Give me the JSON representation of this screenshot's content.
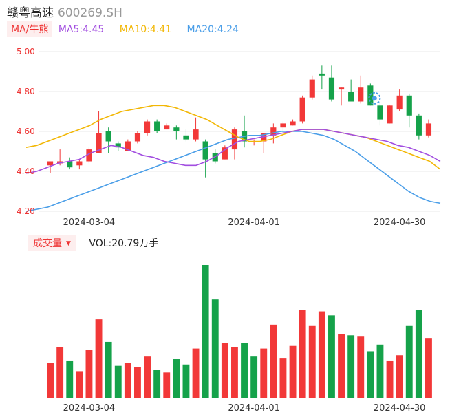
{
  "header": {
    "name": "赣粤高速",
    "code": "600269.SH"
  },
  "ma": {
    "tag": "MA/牛熊",
    "items": [
      {
        "label": "MA5:4.45",
        "color": "#a24ee0"
      },
      {
        "label": "MA10:4.41",
        "color": "#f2b705"
      },
      {
        "label": "MA20:4.24",
        "color": "#4a9ee8"
      }
    ]
  },
  "volume": {
    "tag": "成交量",
    "value": "VOL:20.79万手"
  },
  "colors": {
    "up": "#f23838",
    "down": "#15a24a"
  },
  "chart_data": {
    "type": "candlestick",
    "y_ticks": [
      "5.00",
      "4.80",
      "4.60",
      "4.40",
      "4.20"
    ],
    "ylim": [
      4.2,
      5.0
    ],
    "x_labels": [
      {
        "label": "2024-03-04",
        "index": 4
      },
      {
        "label": "2024-04-01",
        "index": 21
      },
      {
        "label": "2024-04-30",
        "index": 36
      }
    ],
    "candles": [
      {
        "o": 4.43,
        "h": 4.45,
        "l": 4.39,
        "c": 4.45
      },
      {
        "o": 4.44,
        "h": 4.51,
        "l": 4.43,
        "c": 4.45
      },
      {
        "o": 4.45,
        "h": 4.47,
        "l": 4.41,
        "c": 4.42
      },
      {
        "o": 4.43,
        "h": 4.46,
        "l": 4.41,
        "c": 4.45
      },
      {
        "o": 4.45,
        "h": 4.52,
        "l": 4.44,
        "c": 4.51
      },
      {
        "o": 4.49,
        "h": 4.7,
        "l": 4.49,
        "c": 4.59
      },
      {
        "o": 4.6,
        "h": 4.62,
        "l": 4.49,
        "c": 4.55
      },
      {
        "o": 4.54,
        "h": 4.55,
        "l": 4.5,
        "c": 4.52
      },
      {
        "o": 4.5,
        "h": 4.56,
        "l": 4.5,
        "c": 4.55
      },
      {
        "o": 4.55,
        "h": 4.6,
        "l": 4.54,
        "c": 4.59
      },
      {
        "o": 4.59,
        "h": 4.66,
        "l": 4.58,
        "c": 4.65
      },
      {
        "o": 4.65,
        "h": 4.66,
        "l": 4.59,
        "c": 4.6
      },
      {
        "o": 4.61,
        "h": 4.64,
        "l": 4.61,
        "c": 4.63
      },
      {
        "o": 4.62,
        "h": 4.63,
        "l": 4.56,
        "c": 4.6
      },
      {
        "o": 4.58,
        "h": 4.61,
        "l": 4.55,
        "c": 4.56
      },
      {
        "o": 4.56,
        "h": 4.67,
        "l": 4.55,
        "c": 4.61
      },
      {
        "o": 4.55,
        "h": 4.56,
        "l": 4.37,
        "c": 4.46
      },
      {
        "o": 4.49,
        "h": 4.51,
        "l": 4.44,
        "c": 4.45
      },
      {
        "o": 4.46,
        "h": 4.53,
        "l": 4.46,
        "c": 4.52
      },
      {
        "o": 4.51,
        "h": 4.62,
        "l": 4.46,
        "c": 4.61
      },
      {
        "o": 4.6,
        "h": 4.68,
        "l": 4.52,
        "c": 4.55
      },
      {
        "o": 4.55,
        "h": 4.56,
        "l": 4.53,
        "c": 4.55
      },
      {
        "o": 4.55,
        "h": 4.59,
        "l": 4.49,
        "c": 4.59
      },
      {
        "o": 4.58,
        "h": 4.64,
        "l": 4.54,
        "c": 4.62
      },
      {
        "o": 4.62,
        "h": 4.65,
        "l": 4.59,
        "c": 4.64
      },
      {
        "o": 4.63,
        "h": 4.66,
        "l": 4.63,
        "c": 4.65
      },
      {
        "o": 4.65,
        "h": 4.78,
        "l": 4.64,
        "c": 4.77
      },
      {
        "o": 4.77,
        "h": 4.88,
        "l": 4.76,
        "c": 4.86
      },
      {
        "o": 4.89,
        "h": 4.93,
        "l": 4.81,
        "c": 4.88
      },
      {
        "o": 4.87,
        "h": 4.93,
        "l": 4.75,
        "c": 4.76
      },
      {
        "o": 4.81,
        "h": 4.82,
        "l": 4.73,
        "c": 4.82
      },
      {
        "o": 4.8,
        "h": 4.86,
        "l": 4.75,
        "c": 4.75
      },
      {
        "o": 4.75,
        "h": 4.88,
        "l": 4.74,
        "c": 4.82
      },
      {
        "o": 4.83,
        "h": 4.84,
        "l": 4.73,
        "c": 4.73
      },
      {
        "o": 4.73,
        "h": 4.75,
        "l": 4.63,
        "c": 4.66
      },
      {
        "o": 4.64,
        "h": 4.73,
        "l": 4.64,
        "c": 4.73
      },
      {
        "o": 4.71,
        "h": 4.81,
        "l": 4.7,
        "c": 4.78
      },
      {
        "o": 4.78,
        "h": 4.79,
        "l": 4.62,
        "c": 4.68
      },
      {
        "o": 4.68,
        "h": 4.69,
        "l": 4.56,
        "c": 4.58
      },
      {
        "o": 4.58,
        "h": 4.66,
        "l": 4.57,
        "c": 4.64
      }
    ],
    "ma5": [
      4.39,
      4.4,
      4.42,
      4.44,
      4.45,
      4.46,
      4.49,
      4.51,
      4.53,
      4.52,
      4.5,
      4.48,
      4.47,
      4.45,
      4.44,
      4.43,
      4.43,
      4.45,
      4.48,
      4.52,
      4.55,
      4.56,
      4.57,
      4.58,
      4.59,
      4.6,
      4.61,
      4.61,
      4.61,
      4.6,
      4.59,
      4.58,
      4.57,
      4.56,
      4.55,
      4.53,
      4.52,
      4.5,
      4.48,
      4.45
    ],
    "ma10": [
      4.52,
      4.53,
      4.55,
      4.57,
      4.59,
      4.61,
      4.63,
      4.66,
      4.68,
      4.7,
      4.71,
      4.72,
      4.73,
      4.73,
      4.72,
      4.7,
      4.68,
      4.66,
      4.63,
      4.6,
      4.57,
      4.55,
      4.55,
      4.56,
      4.58,
      4.6,
      4.61,
      4.61,
      4.61,
      4.6,
      4.59,
      4.58,
      4.57,
      4.55,
      4.53,
      4.51,
      4.49,
      4.47,
      4.45,
      4.41
    ],
    "ma20": [
      4.2,
      4.21,
      4.22,
      4.24,
      4.26,
      4.28,
      4.3,
      4.32,
      4.34,
      4.36,
      4.38,
      4.4,
      4.42,
      4.44,
      4.46,
      4.48,
      4.5,
      4.52,
      4.54,
      4.56,
      4.57,
      4.58,
      4.58,
      4.59,
      4.6,
      4.6,
      4.6,
      4.59,
      4.58,
      4.56,
      4.53,
      4.5,
      4.46,
      4.42,
      4.38,
      4.34,
      4.3,
      4.27,
      4.25,
      4.24
    ],
    "volume": [
      26,
      38,
      28,
      20,
      36,
      59,
      42,
      24,
      26,
      23,
      31,
      21,
      19,
      29,
      25,
      37,
      100,
      74,
      41,
      38,
      41,
      31,
      37,
      55,
      30,
      39,
      66,
      54,
      65,
      62,
      48,
      47,
      46,
      35,
      40,
      28,
      32,
      54,
      66,
      45
    ],
    "vol_up": [
      true,
      true,
      false,
      true,
      true,
      true,
      false,
      false,
      true,
      true,
      true,
      false,
      true,
      false,
      false,
      true,
      false,
      false,
      true,
      true,
      false,
      false,
      true,
      true,
      true,
      true,
      true,
      true,
      true,
      false,
      true,
      false,
      true,
      false,
      false,
      true,
      true,
      false,
      false,
      true
    ]
  }
}
